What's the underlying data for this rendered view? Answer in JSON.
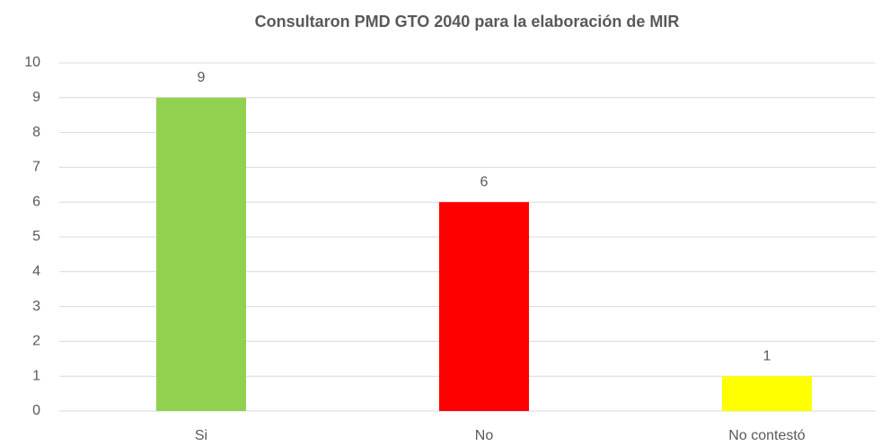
{
  "chart_data": {
    "type": "bar",
    "title": "Consultaron PMD GTO 2040 para la elaboración de MIR",
    "categories": [
      "Si",
      "No",
      "No contestó"
    ],
    "values": [
      9,
      6,
      1
    ],
    "colors": [
      "#92d050",
      "#ff0000",
      "#ffff00"
    ],
    "ylim": [
      0,
      10
    ],
    "yticks": [
      0,
      1,
      2,
      3,
      4,
      5,
      6,
      7,
      8,
      9,
      10
    ],
    "grid": true
  }
}
